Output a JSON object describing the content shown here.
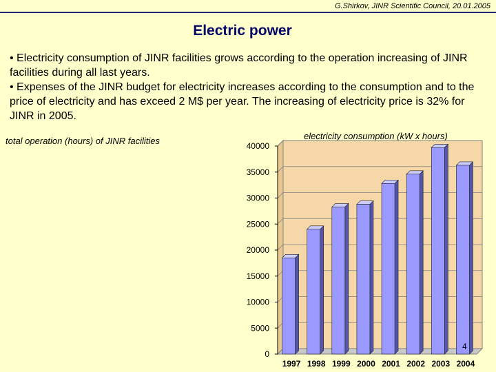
{
  "header": {
    "meta": "G.Shirkov, JINR Scientific Council, 20.01.2005",
    "title": "Electric power"
  },
  "bullets": [
    "• Electricity consumption of JINR facilities grows according to the operation increasing of JINR facilities during all last years.",
    "• Expenses of the JINR budget for electricity increases according to the consumption and to the price of electricity and has exceed 2 M$ per year. The increasing of electricity price is 32% for JINR in 2005."
  ],
  "left_caption": "total operation (hours) of JINR facilities",
  "page_number": "4",
  "colors": {
    "background": "#ffffcc",
    "plot_area": "#f6d8a8",
    "bar_front": "#9999ff",
    "bar_side": "#5555aa",
    "bar_top": "#ccccff",
    "title": "#000066"
  },
  "chart_data": {
    "type": "bar",
    "title": "electricity consumption (kW x hours)",
    "categories": [
      "1997",
      "1998",
      "1999",
      "2000",
      "2001",
      "2002",
      "2003",
      "2004"
    ],
    "values": [
      18500,
      24000,
      28300,
      28800,
      32800,
      34600,
      39700,
      36300
    ],
    "yticks": [
      0,
      5000,
      10000,
      15000,
      20000,
      25000,
      30000,
      35000,
      40000
    ],
    "ylim": [
      0,
      40000
    ],
    "grid": true,
    "style": "3d"
  }
}
